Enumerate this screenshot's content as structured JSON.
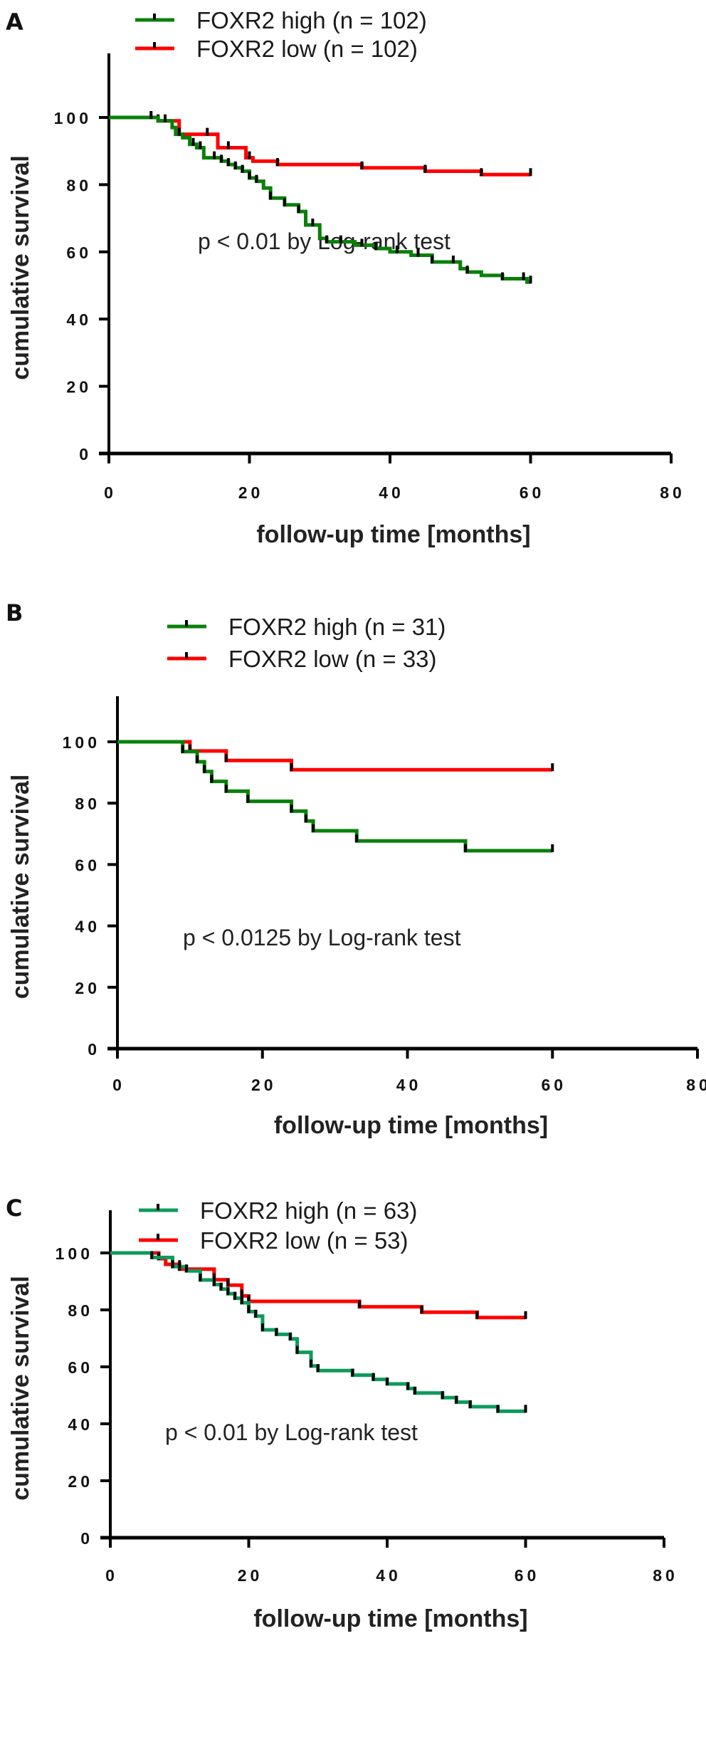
{
  "figure": {
    "panels": [
      "A",
      "B",
      "C"
    ]
  },
  "chart_data": [
    {
      "panel_label": "A",
      "type": "line",
      "subtype": "kaplan-meier",
      "title": "",
      "xlabel": "follow-up time [months]",
      "ylabel": "cumulative survival",
      "xlim": [
        0,
        80
      ],
      "ylim": [
        0,
        110
      ],
      "xticks": [
        "0",
        "20",
        "40",
        "60",
        "80"
      ],
      "yticks": [
        "0",
        "20",
        "40",
        "60",
        "80",
        "100"
      ],
      "grid": false,
      "legend_position": "top",
      "annotation": "p < 0.01  by Log-rank test",
      "series": [
        {
          "name": "FOXR2 high (n = 102)",
          "color": "#0a800a",
          "steps": [
            [
              0,
              100
            ],
            [
              7,
              99
            ],
            [
              9,
              97
            ],
            [
              9.5,
              95
            ],
            [
              10.5,
              94
            ],
            [
              11.5,
              92
            ],
            [
              12.5,
              91
            ],
            [
              13.5,
              88
            ],
            [
              16,
              87
            ],
            [
              17,
              86
            ],
            [
              18,
              85
            ],
            [
              19,
              84
            ],
            [
              20,
              82
            ],
            [
              21,
              81
            ],
            [
              22,
              79
            ],
            [
              23,
              76
            ],
            [
              25,
              74
            ],
            [
              27,
              72
            ],
            [
              28,
              68
            ],
            [
              30,
              64
            ],
            [
              31,
              63
            ],
            [
              35,
              62
            ],
            [
              38,
              61
            ],
            [
              40,
              60
            ],
            [
              43,
              59
            ],
            [
              46,
              57
            ],
            [
              50,
              55
            ],
            [
              51,
              54
            ],
            [
              53,
              53
            ],
            [
              56,
              52
            ],
            [
              59.5,
              51
            ],
            [
              60,
              51
            ]
          ],
          "censor_times": [
            6,
            8,
            10,
            12,
            13,
            15,
            16,
            17,
            18,
            19,
            20,
            21,
            23,
            25,
            27,
            29,
            31,
            33,
            36,
            38,
            41,
            44,
            46,
            49,
            51,
            56,
            59,
            60
          ]
        },
        {
          "name": "FOXR2 low (n = 102)",
          "color": "#ff0000",
          "steps": [
            [
              0,
              100
            ],
            [
              7,
              99
            ],
            [
              10,
              95
            ],
            [
              15.5,
              91
            ],
            [
              19.5,
              88
            ],
            [
              20.5,
              87
            ],
            [
              24,
              86
            ],
            [
              36,
              85
            ],
            [
              45,
              84
            ],
            [
              53,
              83
            ],
            [
              60,
              83
            ]
          ],
          "censor_times": [
            7,
            14,
            17,
            20,
            24,
            36,
            45,
            53,
            60
          ]
        }
      ]
    },
    {
      "panel_label": "B",
      "type": "line",
      "subtype": "kaplan-meier",
      "title": "",
      "xlabel": "follow-up time [months]",
      "ylabel": "cumulative survival",
      "xlim": [
        0,
        80
      ],
      "ylim": [
        0,
        110
      ],
      "xticks": [
        "0",
        "20",
        "40",
        "60",
        "80"
      ],
      "yticks": [
        "0",
        "20",
        "40",
        "60",
        "80",
        "100"
      ],
      "grid": false,
      "legend_position": "top",
      "annotation": "p < 0.0125  by Log-rank test",
      "series": [
        {
          "name": "FOXR2 high (n = 31)",
          "color": "#0a800a",
          "steps": [
            [
              0,
              100
            ],
            [
              9,
              96.8
            ],
            [
              11,
              93.5
            ],
            [
              12,
              90.3
            ],
            [
              13,
              87.1
            ],
            [
              15,
              83.9
            ],
            [
              18,
              80.6
            ],
            [
              24,
              77.4
            ],
            [
              26,
              74.2
            ],
            [
              27,
              71
            ],
            [
              33,
              67.7
            ],
            [
              48,
              64.5
            ],
            [
              60,
              64.5
            ]
          ],
          "censor_times": [
            9,
            11,
            12,
            13,
            15,
            18,
            24,
            26,
            27,
            33,
            48,
            60
          ]
        },
        {
          "name": "FOXR2 low (n = 33)",
          "color": "#ff0000",
          "steps": [
            [
              0,
              100
            ],
            [
              10,
              97
            ],
            [
              15,
              93.9
            ],
            [
              24,
              90.9
            ],
            [
              60,
              90.9
            ]
          ],
          "censor_times": [
            10,
            15,
            24,
            60
          ]
        }
      ]
    },
    {
      "panel_label": "C",
      "type": "line",
      "subtype": "kaplan-meier",
      "title": "",
      "xlabel": "follow-up time [months]",
      "ylabel": "cumulative survival",
      "xlim": [
        0,
        80
      ],
      "ylim": [
        0,
        110
      ],
      "xticks": [
        "0",
        "20",
        "40",
        "60",
        "80"
      ],
      "yticks": [
        "0",
        "20",
        "40",
        "60",
        "80",
        "100"
      ],
      "grid": false,
      "legend_position": "top",
      "annotation": "p < 0.01  by Log-rank test",
      "series": [
        {
          "name": "FOXR2 high (n = 63)",
          "color": "#0e9a5c",
          "steps": [
            [
              0,
              100
            ],
            [
              6,
              98.4
            ],
            [
              9,
              95.2
            ],
            [
              11,
              93.7
            ],
            [
              13,
              90.5
            ],
            [
              15,
              88.9
            ],
            [
              16,
              87.3
            ],
            [
              17,
              85.7
            ],
            [
              18,
              84.1
            ],
            [
              19,
              82.5
            ],
            [
              20,
              79.4
            ],
            [
              21,
              77.8
            ],
            [
              22,
              73
            ],
            [
              24,
              71.4
            ],
            [
              26,
              69.8
            ],
            [
              27,
              65.1
            ],
            [
              29,
              60.3
            ],
            [
              30,
              58.7
            ],
            [
              35,
              57.1
            ],
            [
              38,
              55.6
            ],
            [
              40,
              54
            ],
            [
              43,
              52.4
            ],
            [
              44,
              50.8
            ],
            [
              48,
              49.2
            ],
            [
              50,
              47.6
            ],
            [
              52,
              46
            ],
            [
              56,
              44.4
            ],
            [
              60,
              44.4
            ]
          ],
          "censor_times": [
            6,
            9,
            10,
            11,
            13,
            15,
            16,
            17,
            18,
            19,
            20,
            21,
            22,
            24,
            26,
            27,
            29,
            30,
            35,
            38,
            40,
            43,
            44,
            48,
            50,
            52,
            56,
            60
          ]
        },
        {
          "name": "FOXR2 low (n = 53)",
          "color": "#ff0000",
          "steps": [
            [
              0,
              100
            ],
            [
              7,
              98
            ],
            [
              8,
              96
            ],
            [
              10,
              94.3
            ],
            [
              15,
              90.6
            ],
            [
              17,
              88.7
            ],
            [
              19,
              84.9
            ],
            [
              20,
              83
            ],
            [
              36,
              81.1
            ],
            [
              45,
              79.2
            ],
            [
              53,
              77.3
            ],
            [
              60,
              77.3
            ]
          ],
          "censor_times": [
            7,
            9,
            10,
            15,
            17,
            19,
            20,
            36,
            45,
            53,
            60
          ]
        }
      ]
    }
  ]
}
